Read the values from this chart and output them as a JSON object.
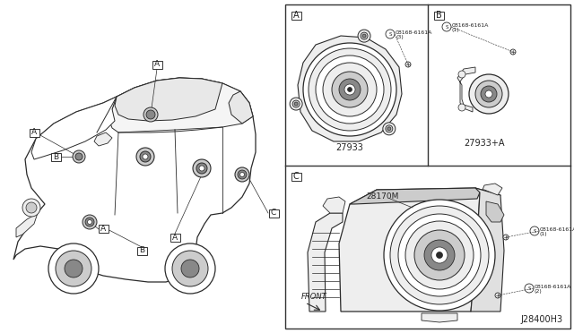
{
  "bg_color": "#ffffff",
  "border_color": "#333333",
  "text_color": "#222222",
  "diagram_id": "J28400H3",
  "part_27933": "27933",
  "part_27933A": "27933+A",
  "part_28170M": "28170M",
  "screw_label": "08168-6161A",
  "screw_qty3": "(3)",
  "screw_qty1": "(1)",
  "screw_qty1b": "(1)",
  "screw_qty2": "(2)",
  "front_label": "FRONT",
  "line_color": "#2a2a2a",
  "fill_light": "#eeeeee",
  "fill_mid": "#cccccc",
  "fill_dark": "#888888",
  "fill_white": "#ffffff"
}
